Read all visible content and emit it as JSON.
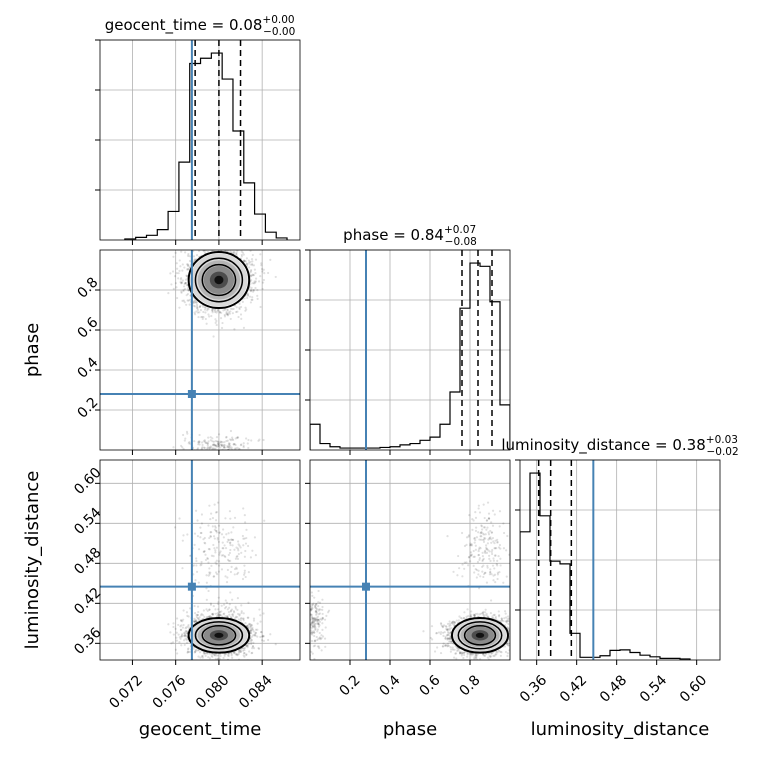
{
  "chart_data": {
    "type": "corner",
    "parameters": [
      "geocent_time",
      "phase",
      "luminosity_distance"
    ],
    "truth": {
      "geocent_time": 0.0775,
      "phase": 0.28,
      "luminosity_distance": 0.445
    },
    "truth_color": "#4682b4",
    "titles": [
      {
        "param": "geocent_time",
        "text": "geocent_time = 0.08",
        "sup": "+0.00",
        "sub": "−0.00"
      },
      {
        "param": "phase",
        "text": "phase = 0.84",
        "sup": "+0.07",
        "sub": "−0.08"
      },
      {
        "param": "luminosity_distance",
        "text": "luminosity_distance = 0.38",
        "sup": "+0.03",
        "sub": "−0.02"
      }
    ],
    "ranges": {
      "geocent_time": [
        0.069,
        0.0875
      ],
      "phase": [
        0.0,
        1.0
      ],
      "luminosity_distance": [
        0.335,
        0.635
      ]
    },
    "ticks": {
      "geocent_time": {
        "values": [
          0.072,
          0.076,
          0.08,
          0.084
        ],
        "labels": [
          "0.072",
          "0.076",
          "0.080",
          "0.084"
        ]
      },
      "phase": {
        "values": [
          0.2,
          0.4,
          0.6,
          0.8
        ],
        "labels": [
          "0.2",
          "0.4",
          "0.6",
          "0.8"
        ]
      },
      "luminosity_distance": {
        "values": [
          0.36,
          0.42,
          0.48,
          0.54,
          0.6
        ],
        "labels": [
          "0.36",
          "0.42",
          "0.48",
          "0.54",
          "0.60"
        ]
      }
    },
    "histograms": {
      "geocent_time": {
        "edges": [
          0.0713,
          0.0723,
          0.0733,
          0.0743,
          0.0753,
          0.0763,
          0.0773,
          0.0783,
          0.0793,
          0.0803,
          0.0813,
          0.0823,
          0.0833,
          0.0843,
          0.0853,
          0.0863
        ],
        "counts": [
          0.2,
          0.5,
          0.9,
          2.0,
          5.5,
          15.0,
          34.0,
          35.0,
          36.0,
          31.0,
          21.0,
          11.0,
          5.0,
          1.5,
          0.4
        ],
        "quantiles": [
          0.0778,
          0.08,
          0.082
        ]
      },
      "phase": {
        "edges": [
          0.0,
          0.05,
          0.1,
          0.15,
          0.2,
          0.25,
          0.3,
          0.35,
          0.4,
          0.45,
          0.5,
          0.55,
          0.6,
          0.65,
          0.7,
          0.75,
          0.8,
          0.85,
          0.9,
          0.95,
          1.0
        ],
        "counts": [
          4.0,
          1.0,
          0.5,
          0.3,
          0.3,
          0.3,
          0.3,
          0.4,
          0.5,
          0.8,
          1.0,
          1.5,
          2.0,
          4.0,
          9.0,
          22.0,
          29.0,
          28.5,
          23.0,
          7.0
        ],
        "quantiles": [
          0.76,
          0.84,
          0.91
        ]
      },
      "luminosity_distance": {
        "edges": [
          0.335,
          0.35,
          0.365,
          0.38,
          0.395,
          0.41,
          0.425,
          0.44,
          0.455,
          0.47,
          0.485,
          0.5,
          0.515,
          0.53,
          0.545,
          0.56,
          0.575,
          0.59
        ],
        "counts": [
          24.0,
          35.0,
          27.0,
          18.5,
          18.0,
          5.0,
          0.5,
          0.5,
          0.8,
          1.8,
          1.9,
          1.4,
          0.9,
          0.6,
          0.3,
          0.3,
          0.2
        ],
        "quantiles": [
          0.363,
          0.381,
          0.412
        ]
      }
    },
    "posterior_modes": [
      {
        "center": {
          "geocent_time": 0.08,
          "phase": 0.85,
          "luminosity_distance": 0.372
        },
        "spread": {
          "geocent_time": 0.0014,
          "phase": 0.07,
          "luminosity_distance": 0.013
        },
        "weight": 0.86
      },
      {
        "center": {
          "geocent_time": 0.08,
          "phase": 0.87,
          "luminosity_distance": 0.5
        },
        "spread": {
          "geocent_time": 0.0016,
          "phase": 0.06,
          "luminosity_distance": 0.03
        },
        "weight": 0.07
      },
      {
        "center": {
          "geocent_time": 0.08,
          "phase": 0.02,
          "luminosity_distance": 0.39
        },
        "spread": {
          "geocent_time": 0.0016,
          "phase": 0.03,
          "luminosity_distance": 0.02
        },
        "weight": 0.07
      }
    ]
  }
}
